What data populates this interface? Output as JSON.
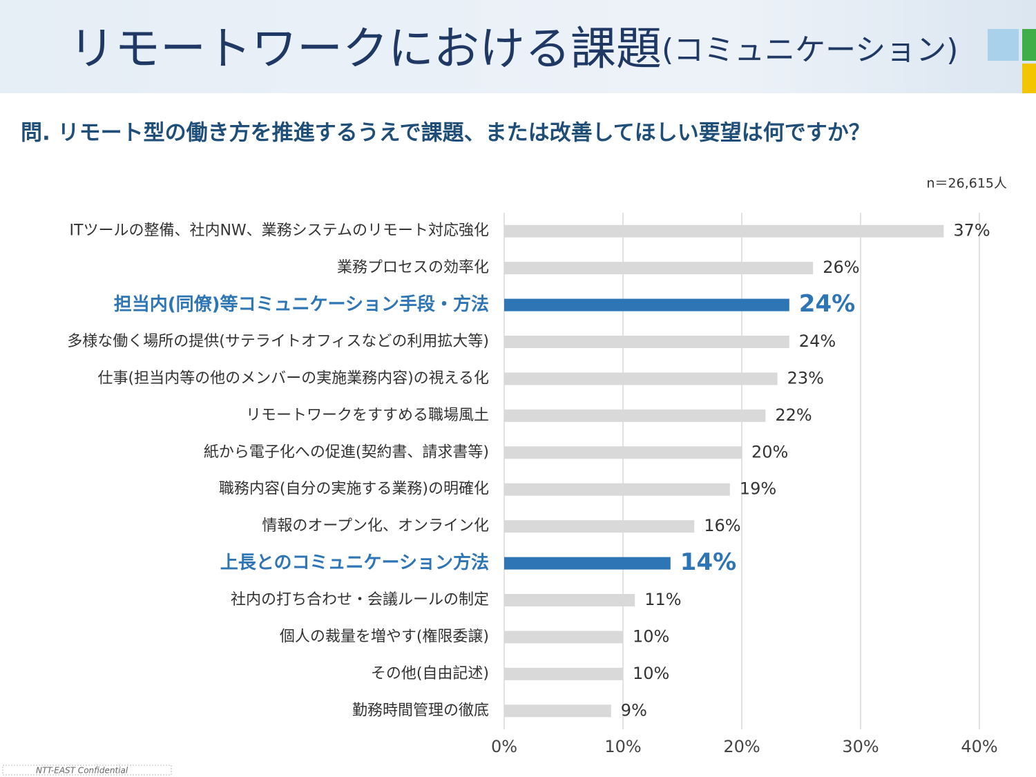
{
  "chart_data": {
    "type": "bar",
    "orientation": "horizontal",
    "title": "リモートワークにおける課題",
    "title_suffix": "(コミュニケーション)",
    "subtitle": "問. リモート型の働き方を推進するうえで課題、または改善してほしい要望は何ですか？",
    "note": "n＝26,615人",
    "footer": "NTT-EAST Confidential",
    "categories": [
      "ITツールの整備、社内NW、業務システムのリモート対応強化",
      "業務プロセスの効率化",
      "担当内(同僚)等コミュニケーション手段・方法",
      "多様な働く場所の提供(サテライトオフィスなどの利用拡大等)",
      "仕事(担当内等の他のメンバーの実施業務内容)の視える化",
      "リモートワークをすすめる職場風土",
      "紙から電子化への促進(契約書、請求書等)",
      "職務内容(自分の実施する業務)の明確化",
      "情報のオープン化、オンライン化",
      "上長とのコミュニケーション方法",
      "社内の打ち合わせ・会議ルールの制定",
      "個人の裁量を増やす(権限委譲)",
      "その他(自由記述)",
      "勤務時間管理の徹底"
    ],
    "values": [
      37,
      26,
      24,
      24,
      23,
      22,
      20,
      19,
      16,
      14,
      11,
      10,
      10,
      9
    ],
    "value_labels": [
      "37%",
      "26%",
      "24%",
      "24%",
      "23%",
      "22%",
      "20%",
      "19%",
      "16%",
      "14%",
      "11%",
      "10%",
      "10%",
      "9%"
    ],
    "colors": [
      "#d9d9d9",
      "#d9d9d9",
      "#2e75b6",
      "#d9d9d9",
      "#d9d9d9",
      "#d9d9d9",
      "#d9d9d9",
      "#d9d9d9",
      "#d9d9d9",
      "#2e75b6",
      "#d9d9d9",
      "#d9d9d9",
      "#d9d9d9",
      "#d9d9d9"
    ],
    "xlim": [
      0,
      40
    ],
    "xticks": [
      {
        "value": 0,
        "label": "0%"
      },
      {
        "value": 10,
        "label": "10%"
      },
      {
        "value": 20,
        "label": "20%"
      },
      {
        "value": 30,
        "label": "30%"
      },
      {
        "value": 40,
        "label": "40%"
      }
    ],
    "grid": true
  }
}
